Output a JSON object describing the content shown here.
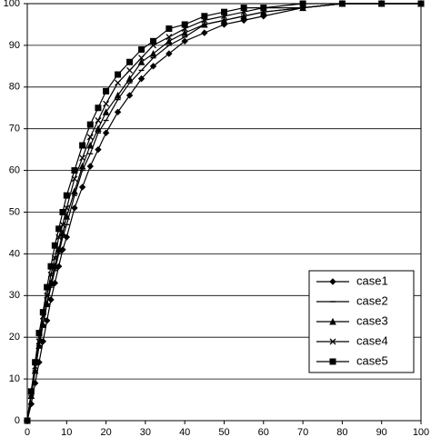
{
  "chart_data": {
    "type": "line",
    "x": [
      0,
      1,
      2,
      3,
      4,
      5,
      6,
      7,
      8,
      9,
      10,
      12,
      14,
      16,
      18,
      20,
      23,
      26,
      29,
      32,
      36,
      40,
      45,
      50,
      55,
      60,
      70,
      80,
      90,
      100
    ],
    "series": [
      {
        "name": "case1",
        "color": "#000000",
        "marker": "diamond",
        "values": [
          0,
          4,
          9,
          14,
          19,
          24,
          29,
          33,
          37,
          41,
          44,
          51,
          56,
          61,
          65,
          69,
          74,
          78,
          82,
          85,
          88,
          91,
          93,
          95,
          96,
          97,
          99,
          100,
          100,
          100
        ]
      },
      {
        "name": "case2",
        "color": "#000000",
        "marker": "dash",
        "values": [
          0,
          6,
          12,
          18,
          23,
          28,
          32,
          36,
          40,
          44,
          47,
          54,
          60,
          64,
          69,
          72,
          77,
          81,
          84,
          87,
          90,
          92,
          95,
          96,
          97,
          98,
          99,
          100,
          100,
          100
        ]
      },
      {
        "name": "case3",
        "color": "#000000",
        "marker": "triangle",
        "values": [
          0,
          6,
          12,
          18,
          23,
          28,
          33,
          37,
          41,
          45,
          49,
          55,
          61,
          66,
          70,
          74,
          78,
          82,
          86,
          88,
          91,
          93,
          95,
          96,
          97,
          98,
          99,
          100,
          100,
          100
        ]
      },
      {
        "name": "case4",
        "color": "#000000",
        "marker": "cross",
        "values": [
          0,
          7,
          13,
          19,
          25,
          30,
          35,
          39,
          44,
          47,
          51,
          58,
          63,
          68,
          72,
          76,
          81,
          84,
          87,
          90,
          92,
          94,
          96,
          97,
          98,
          99,
          99,
          100,
          100,
          100
        ]
      },
      {
        "name": "case5",
        "color": "#000000",
        "marker": "square",
        "values": [
          0,
          7,
          14,
          21,
          26,
          32,
          37,
          42,
          46,
          50,
          54,
          60,
          66,
          71,
          75,
          79,
          83,
          86,
          89,
          91,
          94,
          95,
          97,
          98,
          99,
          99,
          100,
          100,
          100,
          100
        ]
      }
    ],
    "xlim": [
      0,
      100
    ],
    "xticks": [
      0,
      10,
      20,
      30,
      40,
      50,
      60,
      70,
      80,
      90,
      100
    ],
    "ylim": [
      0,
      100
    ],
    "yticks": [
      0,
      10,
      20,
      30,
      40,
      50,
      60,
      70,
      80,
      90,
      100
    ],
    "grid": true,
    "legend": "lower right"
  }
}
